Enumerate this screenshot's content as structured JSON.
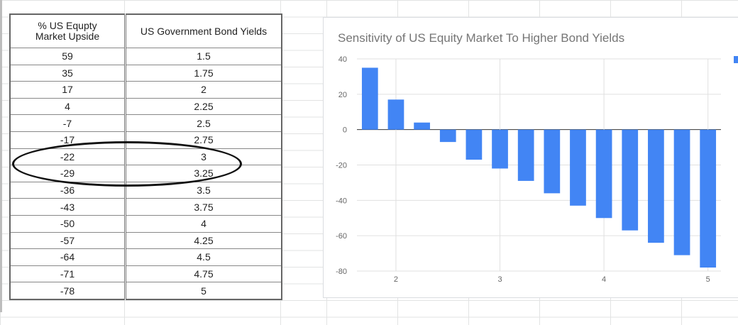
{
  "table": {
    "headers": [
      "% US Equpty Market Upside",
      "US Government Bond Yields"
    ],
    "header_lines": [
      [
        "% US Equpty",
        "Market Upside"
      ],
      [
        "US Government Bond Yields"
      ]
    ],
    "rows": [
      [
        "59",
        "1.5"
      ],
      [
        "35",
        "1.75"
      ],
      [
        "17",
        "2"
      ],
      [
        "4",
        "2.25"
      ],
      [
        "-7",
        "2.5"
      ],
      [
        "-17",
        "2.75"
      ],
      [
        "-22",
        "3"
      ],
      [
        "-29",
        "3.25"
      ],
      [
        "-36",
        "3.5"
      ],
      [
        "-43",
        "3.75"
      ],
      [
        "-50",
        "4"
      ],
      [
        "-57",
        "4.25"
      ],
      [
        "-64",
        "4.5"
      ],
      [
        "-71",
        "4.75"
      ],
      [
        "-78",
        "5"
      ]
    ]
  },
  "annotation": {
    "shape": "ellipse",
    "color": "#111111",
    "highlighted_rows": [
      "-22",
      "-29"
    ]
  },
  "chart_data": {
    "type": "bar",
    "title": "Sensitivity of US Equity Market To  Higher Bond Yields",
    "x": [
      1.75,
      2,
      2.25,
      2.5,
      2.75,
      3,
      3.25,
      3.5,
      3.75,
      4,
      4.25,
      4.5,
      4.75,
      5
    ],
    "values": [
      35,
      17,
      4,
      -7,
      -17,
      -22,
      -29,
      -36,
      -43,
      -50,
      -57,
      -64,
      -71,
      -78
    ],
    "ylim": [
      -80,
      40
    ],
    "yticks": [
      40,
      20,
      0,
      -20,
      -40,
      -60,
      -80
    ],
    "xticks": [
      2,
      3,
      4,
      5
    ],
    "xlim": [
      1.625,
      5.125
    ],
    "grid": true,
    "legend_placement": "right",
    "bar_color": "#4285f4"
  }
}
